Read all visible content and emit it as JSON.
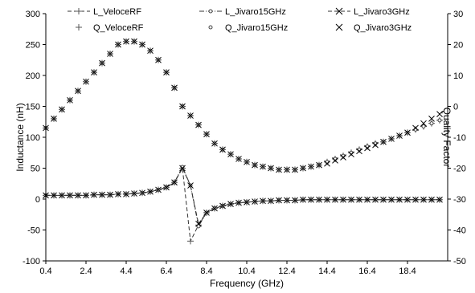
{
  "chart_data": {
    "type": "line",
    "xlabel": "Frequency (GHz)",
    "ylabel_left": "Inductance (nH)",
    "ylabel_right": "Quality Factor",
    "xlim": [
      0.4,
      20.4
    ],
    "ylim_left": [
      -100,
      300
    ],
    "ylim_right": [
      -50,
      30
    ],
    "xticks": [
      "0.4",
      "2.4",
      "4.4",
      "6.4",
      "8.4",
      "10.4",
      "12.4",
      "14.4",
      "16.4",
      "18.4"
    ],
    "yticks_left": [
      "-100",
      "-50",
      "0",
      "50",
      "100",
      "150",
      "200",
      "250",
      "300"
    ],
    "yticks_right": [
      "-50",
      "-40",
      "-30",
      "-20",
      "-10",
      "0",
      "10",
      "20",
      "30"
    ],
    "grid": false,
    "legend": {
      "placement": "top",
      "entries": [
        {
          "label": "L_VeloceRF",
          "marker": "plus",
          "line": "dashed"
        },
        {
          "label": "L_Jivaro15GHz",
          "marker": "circle",
          "line": "dashdot"
        },
        {
          "label": "L_Jivaro3GHz",
          "marker": "x",
          "line": "dashed"
        },
        {
          "label": "Q_VeloceRF",
          "marker": "plus",
          "line": "none"
        },
        {
          "label": "Q_Jivaro15GHz",
          "marker": "circle",
          "line": "none"
        },
        {
          "label": "Q_Jivaro3GHz",
          "marker": "x",
          "line": "none"
        }
      ]
    },
    "x": [
      0.4,
      0.8,
      1.2,
      1.6,
      2.0,
      2.4,
      2.8,
      3.2,
      3.6,
      4.0,
      4.4,
      4.8,
      5.2,
      5.6,
      6.0,
      6.4,
      6.8,
      7.2,
      7.6,
      8.0,
      8.4,
      8.8,
      9.2,
      9.6,
      10.0,
      10.4,
      10.8,
      11.2,
      11.6,
      12.0,
      12.4,
      12.8,
      13.2,
      13.6,
      14.0,
      14.4,
      14.8,
      15.2,
      15.6,
      16.0,
      16.4,
      16.8,
      17.2,
      17.6,
      18.0,
      18.4,
      18.8,
      19.2,
      19.6,
      20.0
    ],
    "series": [
      {
        "name": "L_VeloceRF",
        "axis": "left",
        "values": [
          6,
          6,
          6,
          6,
          6,
          6,
          7,
          7,
          7,
          8,
          8,
          9,
          10,
          12,
          15,
          19,
          27,
          50,
          -68,
          -42,
          -22,
          -15,
          -11,
          -8,
          -6,
          -5,
          -4,
          -3,
          -3,
          -2,
          -2,
          -2,
          -1,
          -1,
          -1,
          -1,
          -1,
          -1,
          -1,
          -1,
          -1,
          -1,
          -1,
          -1,
          -1,
          -1,
          -1,
          -1,
          -1,
          -1
        ]
      },
      {
        "name": "L_Jivaro15GHz",
        "axis": "left",
        "values": [
          6,
          6,
          6,
          6,
          6,
          6,
          7,
          7,
          7,
          8,
          8,
          9,
          10,
          12,
          15,
          19,
          27,
          52,
          22,
          -44,
          -22,
          -15,
          -11,
          -8,
          -6,
          -5,
          -4,
          -3,
          -3,
          -2,
          -2,
          -2,
          -1,
          -1,
          -1,
          -1,
          -1,
          -1,
          -1,
          -1,
          -1,
          -1,
          -1,
          -1,
          -1,
          -1,
          -1,
          -1,
          -1,
          -1
        ]
      },
      {
        "name": "L_Jivaro3GHz",
        "axis": "left",
        "values": [
          6,
          6,
          6,
          6,
          6,
          6,
          7,
          7,
          7,
          8,
          8,
          9,
          10,
          12,
          15,
          19,
          27,
          50,
          22,
          -40,
          -22,
          -15,
          -11,
          -8,
          -6,
          -5,
          -4,
          -3,
          -3,
          -2,
          -2,
          -2,
          -1,
          -1,
          -1,
          -1,
          -1,
          -1,
          -1,
          -1,
          -1,
          -1,
          -1,
          -1,
          -1,
          -1,
          -1,
          -1,
          -1,
          -1
        ]
      },
      {
        "name": "Q_VeloceRF",
        "axis": "right",
        "values": [
          -7,
          -4,
          -1,
          2,
          5,
          8,
          11,
          14,
          17,
          20,
          21,
          21,
          20,
          18,
          15,
          11,
          6,
          0,
          -3,
          -6,
          -9,
          -12,
          -14,
          -15.5,
          -17,
          -18,
          -19,
          -19.5,
          -20,
          -20.5,
          -20.5,
          -20.5,
          -20,
          -19.5,
          -19,
          -18,
          -17,
          -16,
          -15,
          -14,
          -13,
          -12,
          -11.5,
          -10.5,
          -9.5,
          -8.5,
          -7.5,
          -6.5,
          -5.5,
          -4.5
        ]
      },
      {
        "name": "Q_Jivaro15GHz",
        "axis": "right",
        "values": [
          -7,
          -4,
          -1,
          2,
          5,
          8,
          11,
          14,
          17,
          20,
          21,
          21,
          20,
          18,
          15,
          11,
          6,
          0,
          -3,
          -6,
          -9,
          -12,
          -14,
          -15.5,
          -17,
          -18,
          -19,
          -19.5,
          -20,
          -20.5,
          -20.5,
          -20.5,
          -20,
          -19.5,
          -19,
          -18,
          -17,
          -16,
          -15,
          -14,
          -13,
          -12,
          -11.5,
          -10.5,
          -9.5,
          -8.5,
          -7.5,
          -6.5,
          -5.5,
          -4.5
        ]
      },
      {
        "name": "Q_Jivaro3GHz",
        "axis": "right",
        "values": [
          -7,
          -4,
          -1,
          2,
          5,
          8,
          11,
          14,
          17,
          20,
          21,
          21,
          20,
          18,
          15,
          11,
          6,
          0,
          -3,
          -6,
          -9,
          -12,
          -14,
          -15.5,
          -17,
          -18,
          -19,
          -19.5,
          -20,
          -20.5,
          -20.5,
          -20.5,
          -20,
          -19.5,
          -19,
          -18.5,
          -17.5,
          -16.5,
          -15.5,
          -14.5,
          -13.5,
          -12.5,
          -11.5,
          -10.5,
          -9.5,
          -8.5,
          -7,
          -5.5,
          -4,
          -2.5
        ]
      }
    ]
  }
}
